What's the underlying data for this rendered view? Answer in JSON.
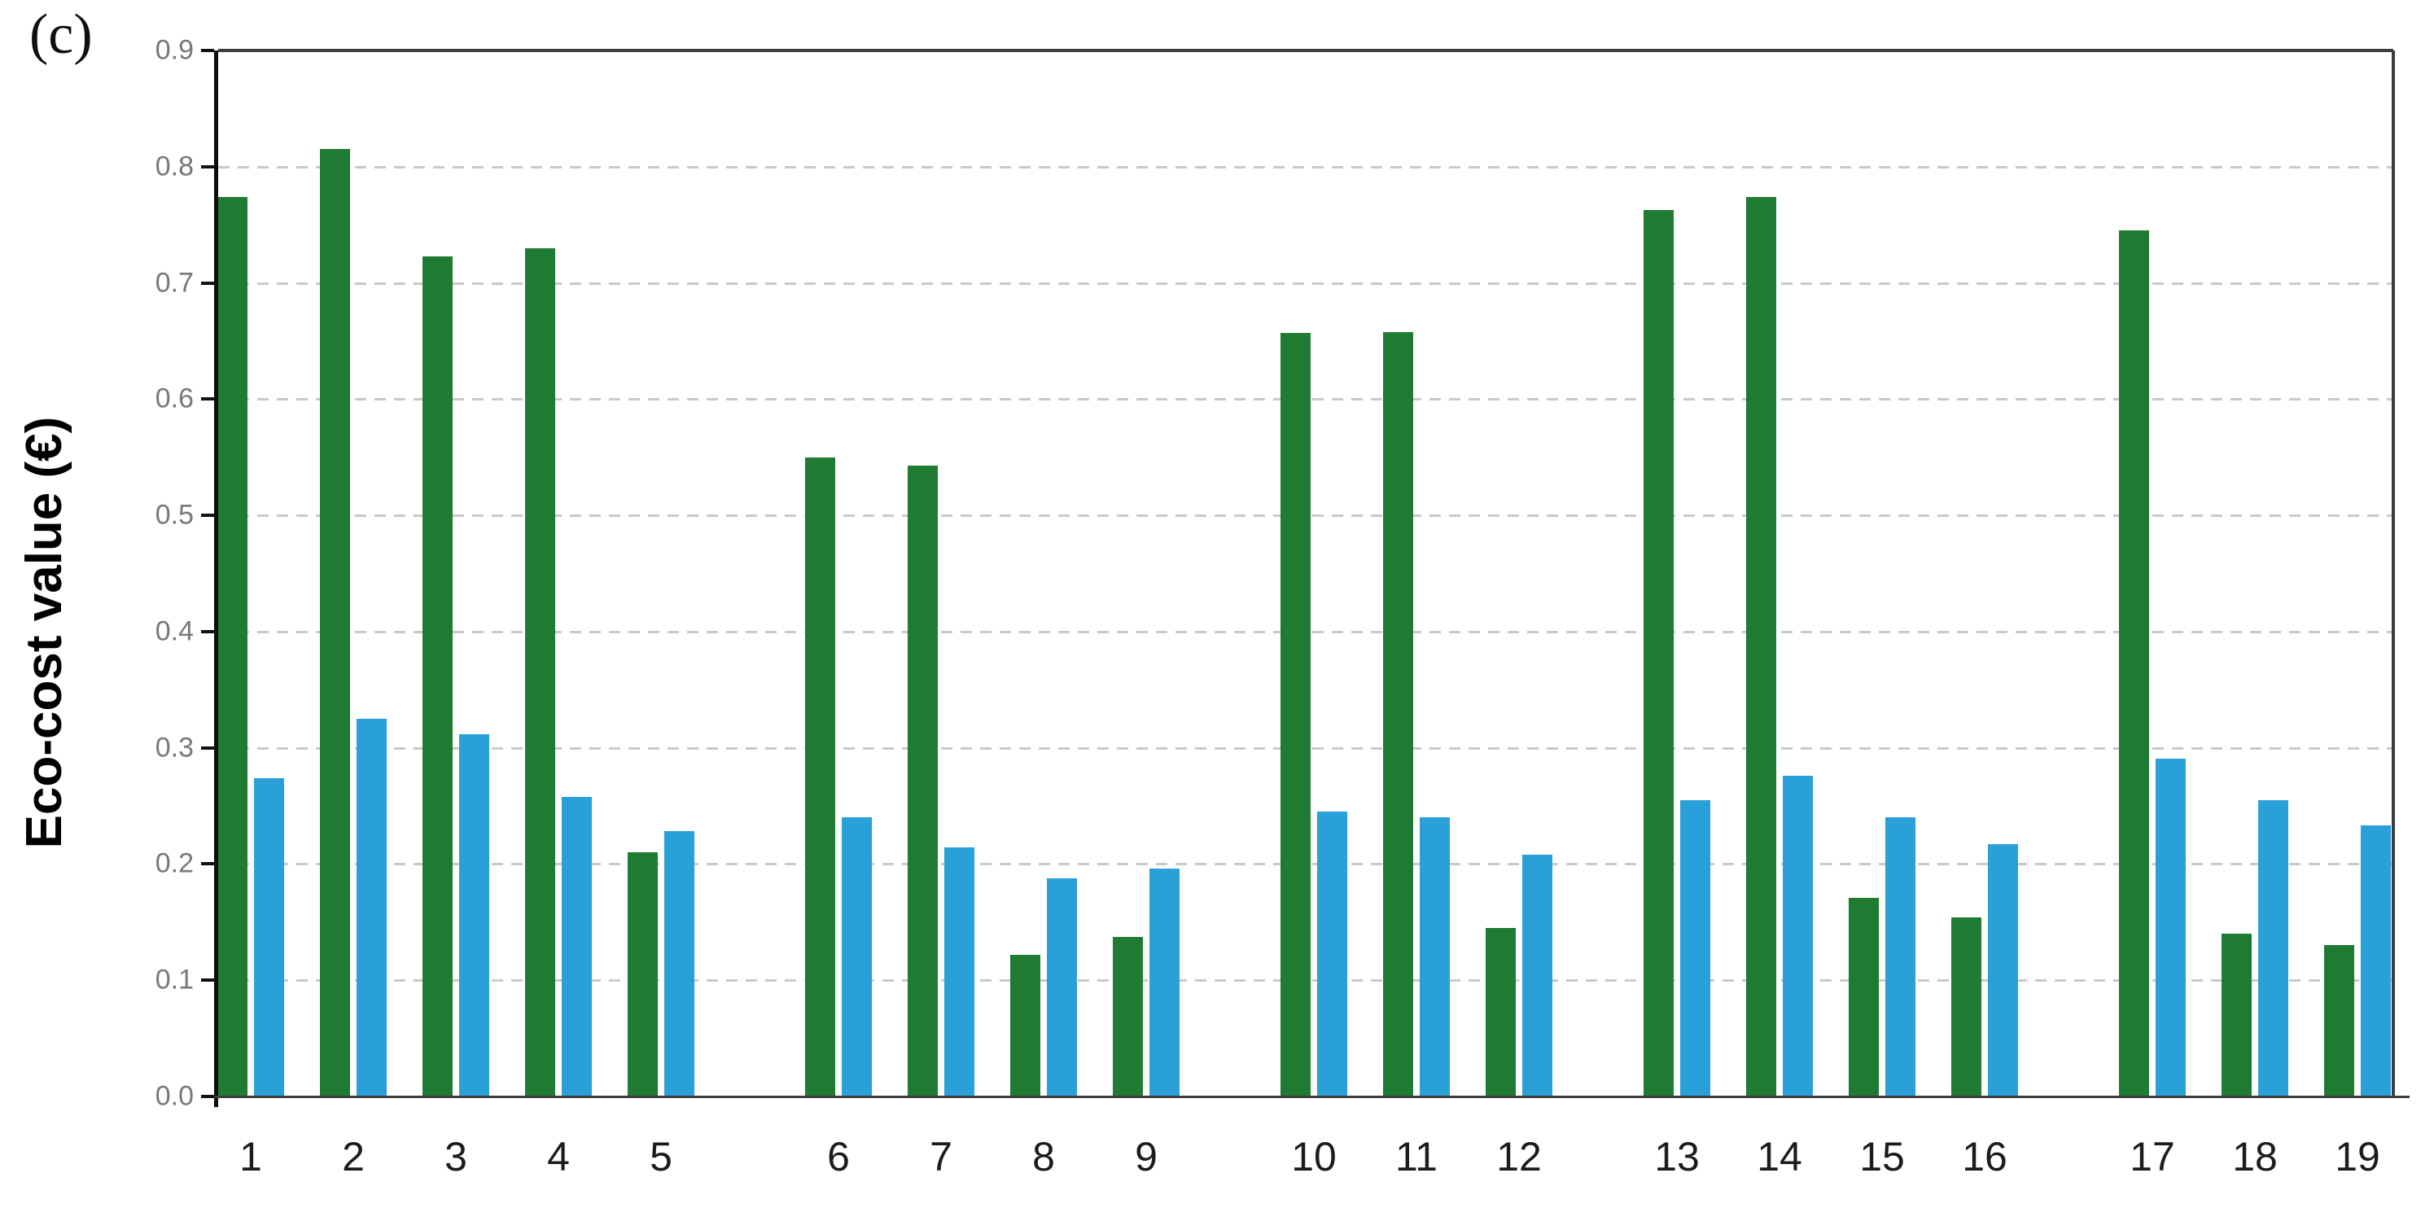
{
  "panel_label": "(c)",
  "chart_data": {
    "type": "bar",
    "title": "",
    "xlabel": "",
    "ylabel": "Eco-cost value (€)",
    "ylim": [
      0.0,
      0.9
    ],
    "ytick_labels": [
      "0.0",
      "0.1",
      "0.2",
      "0.3",
      "0.4",
      "0.5",
      "0.6",
      "0.7",
      "0.8",
      "0.9"
    ],
    "grid": "horizontal-dashed",
    "legend_position": "none",
    "categories": [
      "1",
      "2",
      "3",
      "4",
      "5",
      "6",
      "7",
      "8",
      "9",
      "10",
      "11",
      "12",
      "13",
      "14",
      "15",
      "16",
      "17",
      "18",
      "19"
    ],
    "cluster_breaks_after": [
      "5",
      "9",
      "12",
      "16"
    ],
    "series": [
      {
        "name": "green-bars",
        "color": "#1F7A32",
        "values": [
          0.774,
          0.815,
          0.723,
          0.73,
          0.21,
          0.55,
          0.543,
          0.122,
          0.137,
          0.657,
          0.658,
          0.145,
          0.763,
          0.774,
          0.171,
          0.154,
          0.745,
          0.14,
          0.13
        ]
      },
      {
        "name": "blue-bars",
        "color": "#2AA0D8",
        "values": [
          0.274,
          0.325,
          0.312,
          0.258,
          0.228,
          0.24,
          0.214,
          0.188,
          0.196,
          0.245,
          0.24,
          0.208,
          0.255,
          0.276,
          0.24,
          0.217,
          0.291,
          0.255,
          0.233
        ]
      }
    ]
  }
}
